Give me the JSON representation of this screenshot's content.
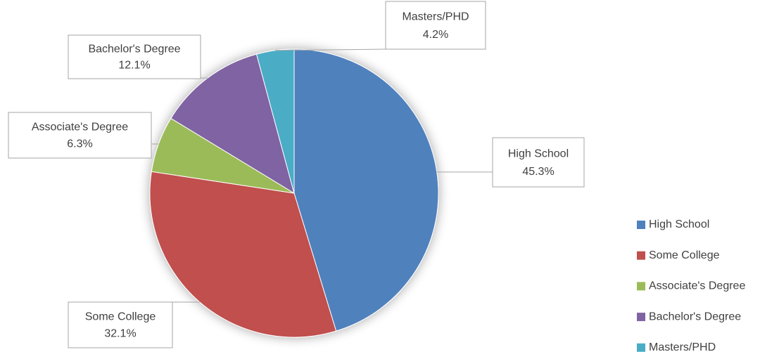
{
  "chart_data": {
    "type": "pie",
    "categories": [
      "High School",
      "Some College",
      "Associate's Degree",
      "Bachelor's Degree",
      "Masters/PHD"
    ],
    "values": [
      45.3,
      32.1,
      6.3,
      12.1,
      4.2
    ],
    "value_labels": [
      "45.3%",
      "32.1%",
      "6.3%",
      "12.1%",
      "4.2%"
    ],
    "colors": [
      "#4f81bd",
      "#c0504d",
      "#9bbb59",
      "#8064a2",
      "#4bacc6"
    ],
    "legend": "right"
  }
}
